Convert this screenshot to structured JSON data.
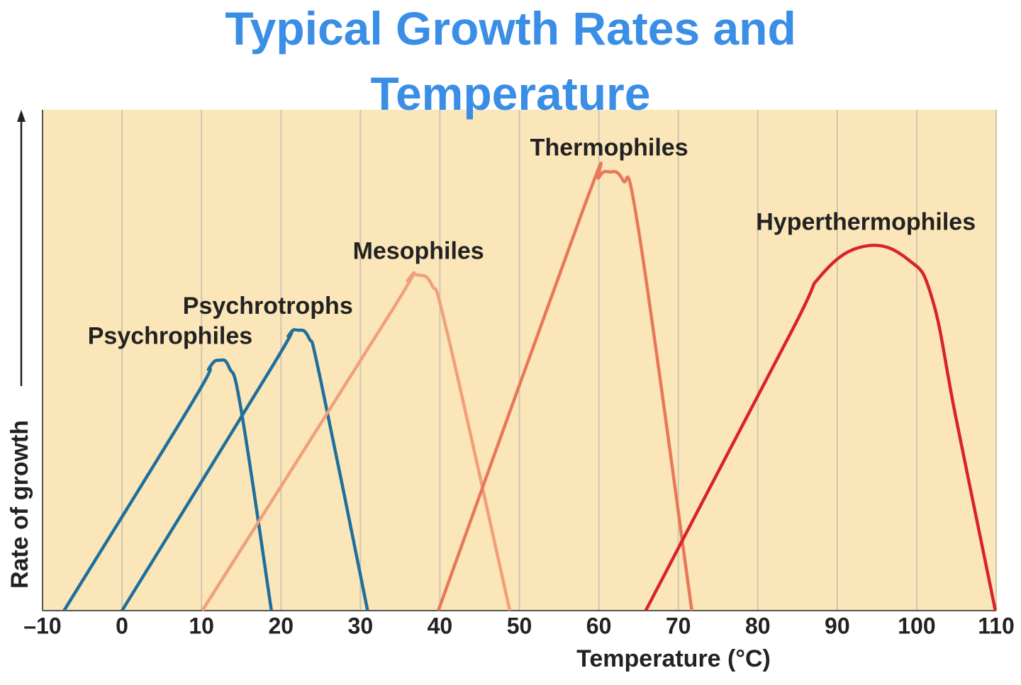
{
  "chart_data": {
    "type": "line",
    "title": "Typical Growth Rates and Temperature",
    "x_label": "Temperature (°C)",
    "y_label": "Rate of growth",
    "xlim": [
      -10,
      110
    ],
    "ylim": [
      0,
      100
    ],
    "xticks": [
      {
        "value": -10,
        "label": "–10"
      },
      0,
      10,
      20,
      30,
      40,
      50,
      60,
      70,
      80,
      90,
      100,
      110
    ],
    "grid": true,
    "background": "#fbe6b9",
    "series": [
      {
        "name": "Psychrophiles",
        "color": "#1f6f9c",
        "x": [
          -7.3,
          9,
          11,
          12.3,
          13.5,
          15,
          18.8
        ],
        "values": [
          0,
          42,
          48.5,
          50,
          48.5,
          40,
          0
        ]
      },
      {
        "name": "Psychrotrophs",
        "color": "#1f6f9c",
        "x": [
          0,
          19,
          21,
          22.1,
          23.5,
          25,
          30.9
        ],
        "values": [
          0,
          49,
          55,
          56,
          54.5,
          46,
          0
        ]
      },
      {
        "name": "Mesophiles",
        "color": "#f0a07a",
        "x": [
          10.1,
          34,
          36,
          37.3,
          39,
          41,
          48.8
        ],
        "values": [
          0,
          60,
          66,
          67,
          65,
          55,
          0
        ]
      },
      {
        "name": "Thermophiles",
        "color": "#e8785a",
        "x": [
          39.8,
          58,
          60,
          61.3,
          63,
          65,
          71.7
        ],
        "values": [
          0,
          80,
          86.5,
          87.6,
          86,
          76,
          0
        ]
      },
      {
        "name": "Hyperthermophiles",
        "color": "#d9232a",
        "x": [
          65.9,
          84,
          88,
          93.6,
          99,
          102,
          105,
          109.9
        ],
        "values": [
          0,
          55,
          67,
          72.8,
          70,
          62,
          38,
          0
        ]
      }
    ]
  }
}
